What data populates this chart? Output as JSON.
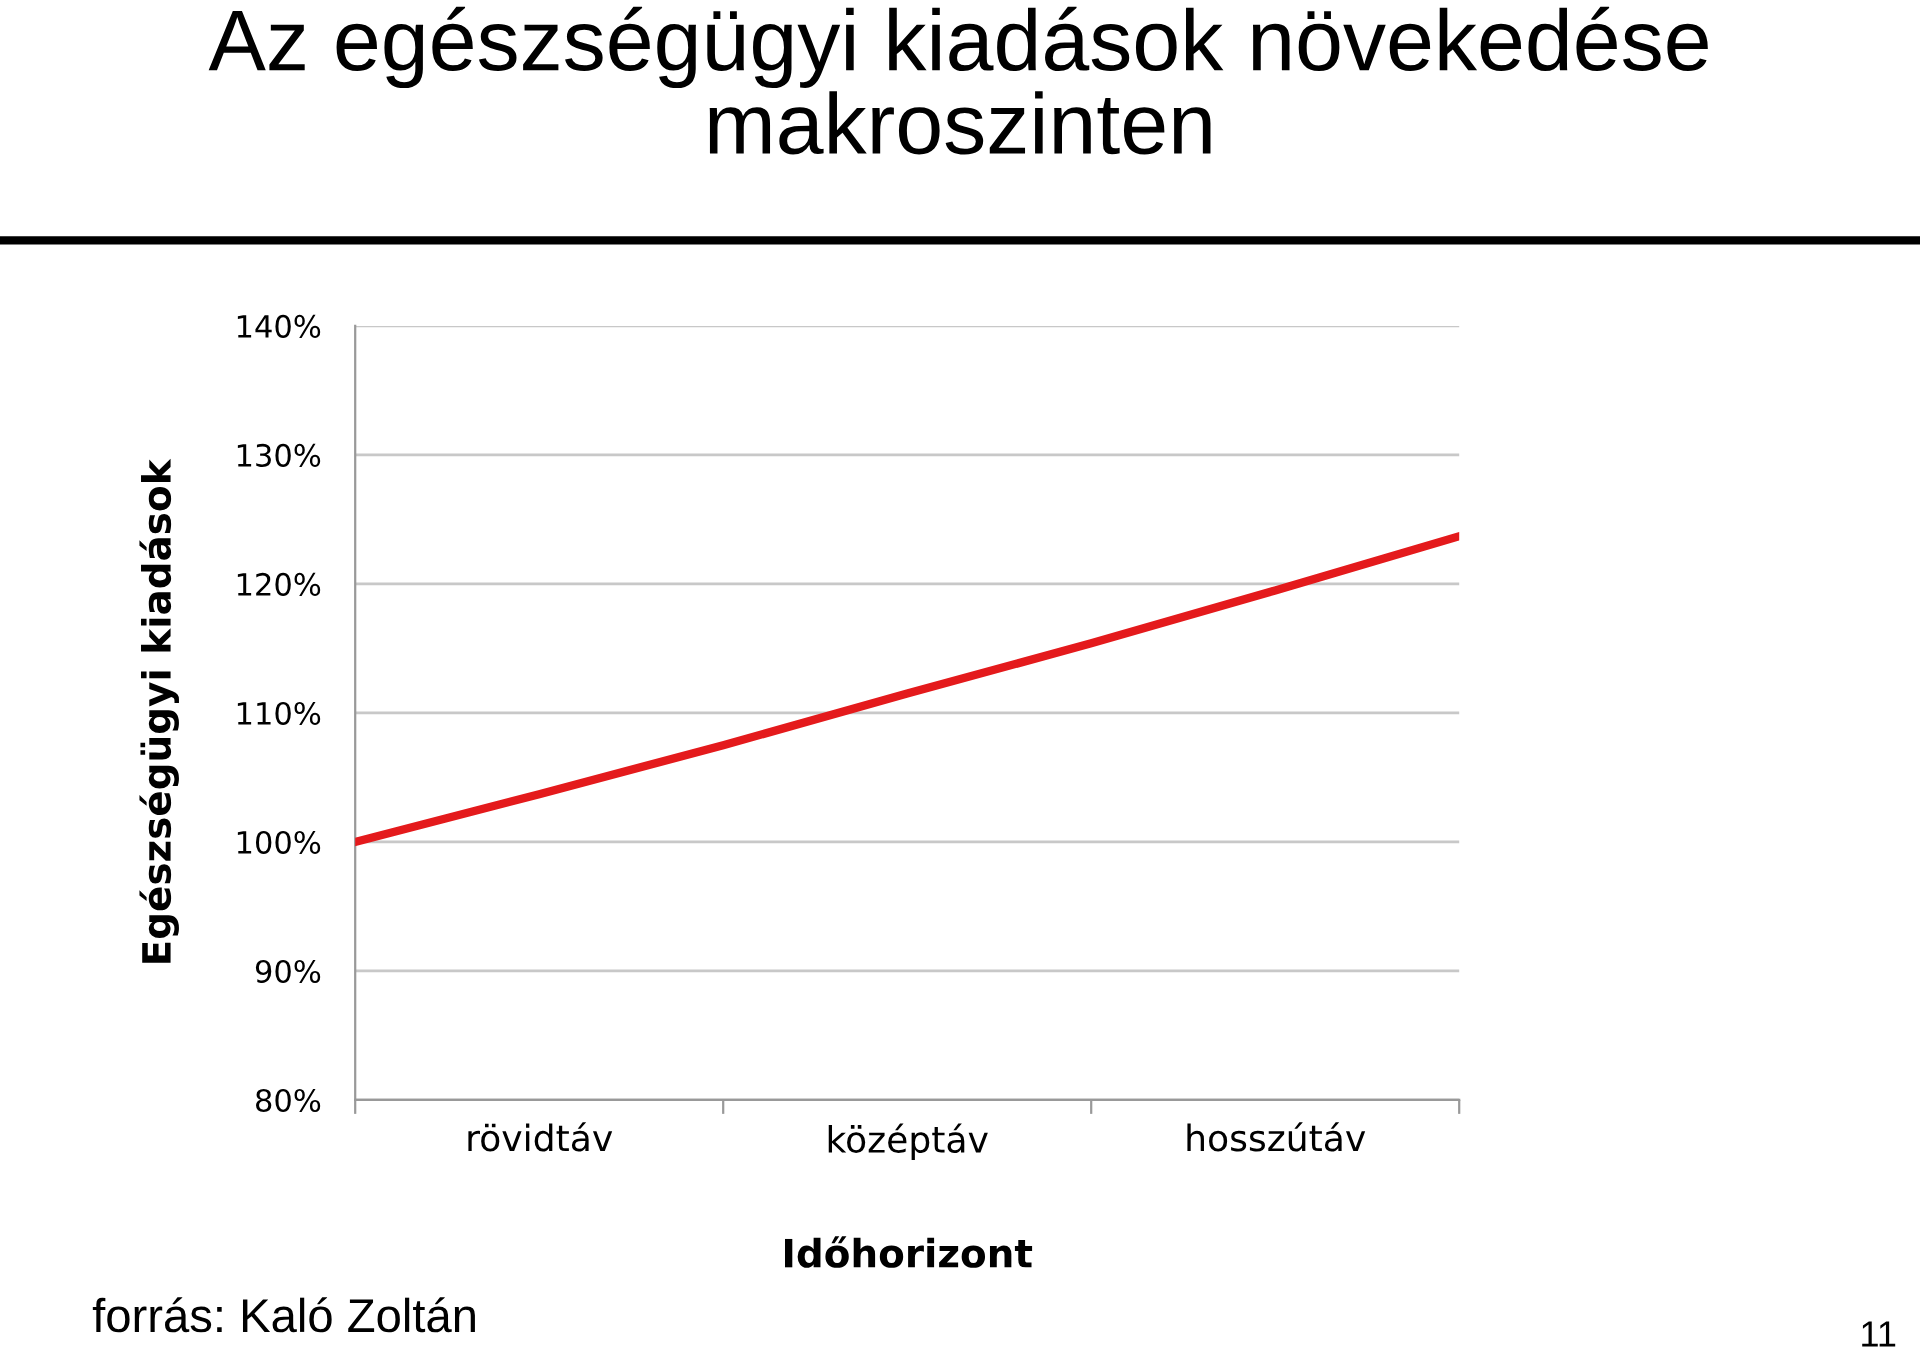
{
  "chart_data": {
    "type": "line",
    "title": "Az egészségügyi kiadások növekedése\nmakroszinten",
    "xlabel": "Időhorizont",
    "ylabel": "Egészségügyi kiadások",
    "categories": [
      null,
      "rövidtáv",
      null,
      "középtáv",
      null,
      "hosszútáv",
      null
    ],
    "series": [
      {
        "color": "#e41a1c",
        "values": [
          100,
          103.7,
          107.5,
          111.5,
          115.4,
          119.5,
          123.7
        ]
      }
    ],
    "ylim": [
      80,
      140
    ],
    "yticks": [
      {
        "value": 80,
        "label": "80%"
      },
      {
        "value": 90,
        "label": "90%"
      },
      {
        "value": 100,
        "label": "100%"
      },
      {
        "value": 110,
        "label": "110%"
      },
      {
        "value": 120,
        "label": "120%"
      },
      {
        "value": 130,
        "label": "130%"
      },
      {
        "value": 140,
        "label": "140%"
      }
    ],
    "grid": "y",
    "marker": "none",
    "line_style": "solid",
    "legend": false,
    "annotations": [
      "forrás: Kaló Zoltán",
      "11"
    ]
  }
}
